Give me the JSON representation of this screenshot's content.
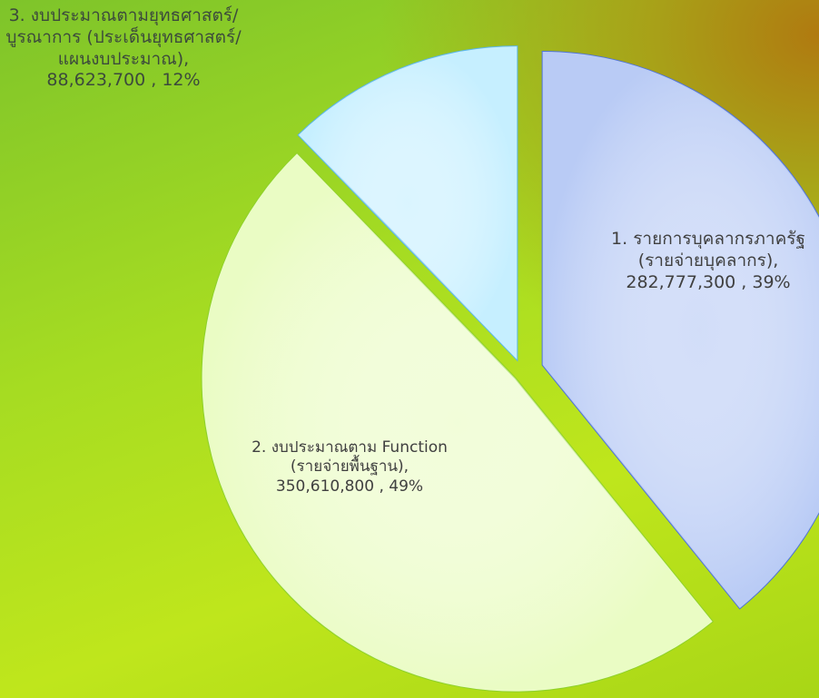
{
  "chart_data": {
    "type": "pie",
    "categories": [
      "1. รายการบุคลากรภาครัฐ (รายจ่ายบุคลากร),",
      "2. งบประมาณตาม Function (รายจ่ายพื้นฐาน),",
      "3. งบประมาณตามยุทธศาสตร์/บูรณาการ (ประเด็นยุทธศาสตร์/แผนงบประมาณ),"
    ],
    "values": [
      282777300,
      350610800,
      88623700
    ],
    "value_labels": [
      "282,777,300",
      "350,610,800",
      "88,623,700"
    ],
    "percents": [
      39,
      49,
      12
    ],
    "percent_labels": [
      "39%",
      "49%",
      "12%"
    ],
    "label_separator": " , ",
    "colors": [
      "#b9cbf5",
      "#eafcc4",
      "#c6efff"
    ],
    "edge_colors": [
      "#4f73d6",
      "#8fd12a",
      "#5bb6e8"
    ]
  }
}
